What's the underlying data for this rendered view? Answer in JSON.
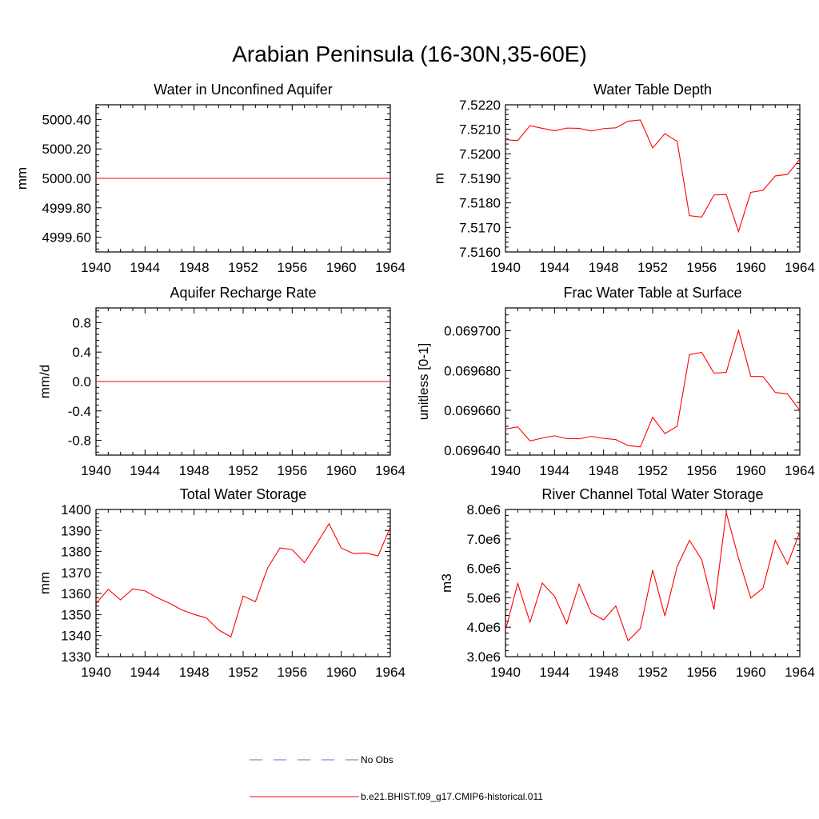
{
  "page": {
    "title": "Arabian Peninsula (16-30N,35-60E)"
  },
  "colors": {
    "model_line": "#ff0000",
    "obs_line": "#6b6bcc",
    "axis": "#000000",
    "background": "#ffffff"
  },
  "legend": {
    "items": [
      {
        "label": "No Obs",
        "style": "dashed",
        "color": "#6b6bcc"
      },
      {
        "label": "b.e21.BHIST.f09_g17.CMIP6-historical.011",
        "style": "solid",
        "color": "#ff0000"
      }
    ]
  },
  "chart_data": [
    {
      "type": "line",
      "title": "Water in Unconfined Aquifer",
      "xlabel": "",
      "ylabel": "mm",
      "xlim": [
        1940,
        1964
      ],
      "ylim": [
        4999.5,
        5000.5
      ],
      "xticks": [
        1940,
        1944,
        1948,
        1952,
        1956,
        1960,
        1964
      ],
      "xtick_labels": [
        "1940",
        "1944",
        "1948",
        "1952",
        "1956",
        "1960",
        "1964"
      ],
      "yticks": [
        4999.6,
        4999.8,
        5000.0,
        5000.2,
        5000.4
      ],
      "ytick_labels": [
        "4999.60",
        "4999.80",
        "5000.00",
        "5000.20",
        "5000.40"
      ],
      "x": [
        1940,
        1964
      ],
      "series": [
        {
          "values": [
            5000.0,
            5000.0
          ]
        }
      ]
    },
    {
      "type": "line",
      "title": "Water Table Depth",
      "xlabel": "",
      "ylabel": "m",
      "xlim": [
        1940,
        1964
      ],
      "ylim": [
        7.516,
        7.522
      ],
      "xticks": [
        1940,
        1944,
        1948,
        1952,
        1956,
        1960,
        1964
      ],
      "xtick_labels": [
        "1940",
        "1944",
        "1948",
        "1952",
        "1956",
        "1960",
        "1964"
      ],
      "yticks": [
        7.516,
        7.517,
        7.518,
        7.519,
        7.52,
        7.521,
        7.522
      ],
      "ytick_labels": [
        "7.5160",
        "7.5170",
        "7.5180",
        "7.5190",
        "7.5200",
        "7.5210",
        "7.5220"
      ],
      "x": [
        1940,
        1941,
        1942,
        1943,
        1944,
        1945,
        1946,
        1947,
        1948,
        1949,
        1950,
        1951,
        1952,
        1953,
        1954,
        1955,
        1956,
        1957,
        1958,
        1959,
        1960,
        1961,
        1962,
        1963,
        1964
      ],
      "series": [
        {
          "values": [
            7.52058,
            7.52054,
            7.52115,
            7.52104,
            7.52094,
            7.52105,
            7.52104,
            7.52093,
            7.52103,
            7.52106,
            7.52133,
            7.52138,
            7.52024,
            7.52082,
            7.52051,
            7.51748,
            7.51742,
            7.51832,
            7.51834,
            7.51683,
            7.51843,
            7.51851,
            7.5191,
            7.51916,
            7.51978
          ]
        }
      ]
    },
    {
      "type": "line",
      "title": "Aquifer Recharge Rate",
      "xlabel": "",
      "ylabel": "mm/d",
      "xlim": [
        1940,
        1964
      ],
      "ylim": [
        -1.0,
        1.0
      ],
      "xticks": [
        1940,
        1944,
        1948,
        1952,
        1956,
        1960,
        1964
      ],
      "xtick_labels": [
        "1940",
        "1944",
        "1948",
        "1952",
        "1956",
        "1960",
        "1964"
      ],
      "yticks": [
        -0.8,
        -0.4,
        0.0,
        0.4,
        0.8
      ],
      "ytick_labels": [
        "-0.8",
        "-0.4",
        "0.0",
        "0.4",
        "0.8"
      ],
      "x": [
        1940,
        1964
      ],
      "series": [
        {
          "values": [
            0.0,
            0.0
          ]
        }
      ]
    },
    {
      "type": "line",
      "title": "Frac Water Table at Surface",
      "xlabel": "",
      "ylabel": "unitless [0-1]",
      "xlim": [
        1940,
        1964
      ],
      "ylim": [
        0.0696375,
        0.0697115
      ],
      "xticks": [
        1940,
        1944,
        1948,
        1952,
        1956,
        1960,
        1964
      ],
      "xtick_labels": [
        "1940",
        "1944",
        "1948",
        "1952",
        "1956",
        "1960",
        "1964"
      ],
      "yticks": [
        0.06964,
        0.06966,
        0.06968,
        0.0697
      ],
      "ytick_labels": [
        "0.069640",
        "0.069660",
        "0.069680",
        "0.069700"
      ],
      "x": [
        1940,
        1941,
        1942,
        1943,
        1944,
        1945,
        1946,
        1947,
        1948,
        1949,
        1950,
        1951,
        1952,
        1953,
        1954,
        1955,
        1956,
        1957,
        1958,
        1959,
        1960,
        1961,
        1962,
        1963,
        1964
      ],
      "series": [
        {
          "values": [
            0.0696506,
            0.0696517,
            0.0696446,
            0.0696461,
            0.0696472,
            0.0696458,
            0.0696457,
            0.0696469,
            0.0696459,
            0.0696453,
            0.0696423,
            0.0696416,
            0.0696565,
            0.0696483,
            0.069652,
            0.069688,
            0.0696892,
            0.0696787,
            0.0696791,
            0.0697002,
            0.0696771,
            0.069677,
            0.069669,
            0.0696682,
            0.06966
          ]
        }
      ]
    },
    {
      "type": "line",
      "title": "Total Water Storage",
      "xlabel": "",
      "ylabel": "mm",
      "xlim": [
        1940,
        1964
      ],
      "ylim": [
        1330,
        1400
      ],
      "xticks": [
        1940,
        1944,
        1948,
        1952,
        1956,
        1960,
        1964
      ],
      "xtick_labels": [
        "1940",
        "1944",
        "1948",
        "1952",
        "1956",
        "1960",
        "1964"
      ],
      "yticks": [
        1330,
        1340,
        1350,
        1360,
        1370,
        1380,
        1390,
        1400
      ],
      "ytick_labels": [
        "1330",
        "1340",
        "1350",
        "1360",
        "1370",
        "1380",
        "1390",
        "1400"
      ],
      "x": [
        1940,
        1941,
        1942,
        1943,
        1944,
        1945,
        1946,
        1947,
        1948,
        1949,
        1950,
        1951,
        1952,
        1953,
        1954,
        1955,
        1956,
        1957,
        1958,
        1959,
        1960,
        1961,
        1962,
        1963,
        1964
      ],
      "series": [
        {
          "values": [
            1355.2,
            1362.0,
            1357.0,
            1362.2,
            1361.3,
            1358.0,
            1355.4,
            1352.2,
            1350.1,
            1348.4,
            1342.7,
            1339.4,
            1358.8,
            1356.1,
            1372.2,
            1381.7,
            1380.9,
            1374.7,
            1383.7,
            1393.2,
            1381.7,
            1379.0,
            1379.3,
            1377.9,
            1391.5
          ]
        }
      ]
    },
    {
      "type": "line",
      "title": "River Channel Total Water Storage",
      "xlabel": "",
      "ylabel": "m3",
      "xlim": [
        1940,
        1964
      ],
      "ylim": [
        3000000,
        8000000
      ],
      "xticks": [
        1940,
        1944,
        1948,
        1952,
        1956,
        1960,
        1964
      ],
      "xtick_labels": [
        "1940",
        "1944",
        "1948",
        "1952",
        "1956",
        "1960",
        "1964"
      ],
      "yticks": [
        3000000,
        4000000,
        5000000,
        6000000,
        7000000,
        8000000
      ],
      "ytick_labels": [
        "3.0e6",
        "4.0e6",
        "5.0e6",
        "6.0e6",
        "7.0e6",
        "8.0e6"
      ],
      "x": [
        1940,
        1941,
        1942,
        1943,
        1944,
        1945,
        1946,
        1947,
        1948,
        1949,
        1950,
        1951,
        1952,
        1953,
        1954,
        1955,
        1956,
        1957,
        1958,
        1959,
        1960,
        1961,
        1962,
        1963,
        1964
      ],
      "series": [
        {
          "values": [
            3900000,
            5490000,
            4170000,
            5500000,
            5050000,
            4120000,
            5460000,
            4480000,
            4250000,
            4720000,
            3540000,
            3960000,
            5940000,
            4380000,
            6060000,
            6950000,
            6300000,
            4600000,
            7900000,
            6350000,
            4990000,
            5330000,
            6950000,
            6140000,
            7230000
          ]
        }
      ]
    }
  ]
}
